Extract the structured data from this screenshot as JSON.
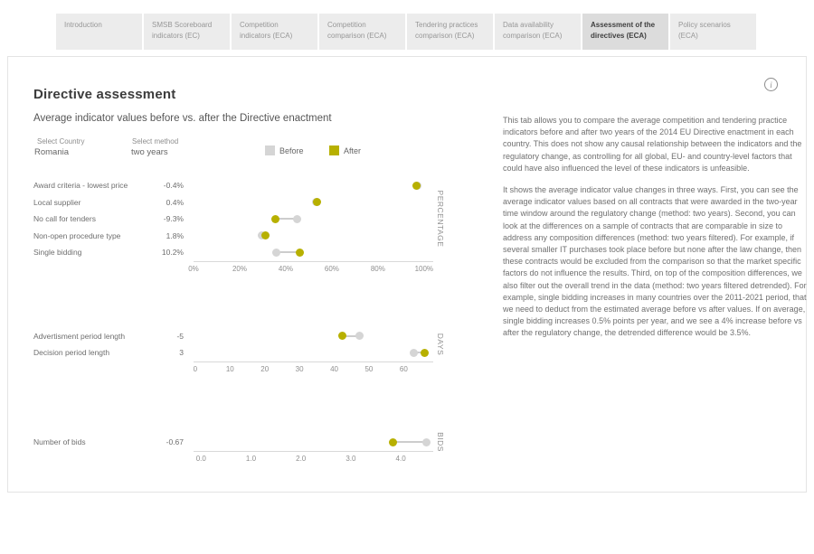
{
  "tabs": {
    "items": [
      {
        "label": "Introduction",
        "selected": false
      },
      {
        "label": "SMSB Scoreboard indicators (EC)",
        "selected": false
      },
      {
        "label": "Competition indicators (ECA)",
        "selected": false
      },
      {
        "label": "Competition comparison (ECA)",
        "selected": false
      },
      {
        "label": "Tendering practices comparison (ECA)",
        "selected": false
      },
      {
        "label": "Data availability comparison (ECA)",
        "selected": false
      },
      {
        "label": "Assessment of the directives (ECA)",
        "selected": true
      },
      {
        "label": "Policy scenarios (ECA)",
        "selected": false
      }
    ]
  },
  "header": {
    "title": "Directive assessment",
    "info_icon": "i"
  },
  "controls": {
    "country": {
      "label": "Select Country",
      "value": "Romania"
    },
    "method": {
      "label": "Select method",
      "value": "two years"
    }
  },
  "legend": {
    "items": [
      {
        "label": "Before",
        "color": "#d5d5d5"
      },
      {
        "label": "After",
        "color": "#b7b000"
      }
    ]
  },
  "colors": {
    "before": "#d5d5d5",
    "after": "#b7b000",
    "connector": "#cdcdcd",
    "axis": "#d9d9d9"
  },
  "chart_data": {
    "type": "dumbbell",
    "title": "Average indicator values before vs. after the Directive enactment",
    "legend_entries": [
      "Before",
      "After"
    ],
    "legend_position": "top",
    "grid": false,
    "groups": [
      {
        "name": "PERCENTAGE",
        "xlim": [
          0,
          104
        ],
        "ticks": [
          {
            "label": "0%",
            "value": 0
          },
          {
            "label": "20%",
            "value": 20
          },
          {
            "label": "40%",
            "value": 40
          },
          {
            "label": "60%",
            "value": 60
          },
          {
            "label": "80%",
            "value": 80
          },
          {
            "label": "100%",
            "value": 100
          }
        ],
        "rows": [
          {
            "label": "Award criteria - lowest price",
            "change": "-0.4%",
            "before": 97.3,
            "after": 96.9
          },
          {
            "label": "Local supplier",
            "change": "0.4%",
            "before": 53.1,
            "after": 53.5
          },
          {
            "label": "No call for tenders",
            "change": "-9.3%",
            "before": 45.0,
            "after": 35.7
          },
          {
            "label": "Non-open procedure type",
            "change": "1.8%",
            "before": 29.5,
            "after": 31.3
          },
          {
            "label": "Single bidding",
            "change": "10.2%",
            "before": 35.8,
            "after": 46.0
          }
        ]
      },
      {
        "name": "DAYS",
        "xlim": [
          -0.5,
          68.5
        ],
        "ticks": [
          {
            "label": "0",
            "value": 0
          },
          {
            "label": "10",
            "value": 10
          },
          {
            "label": "20",
            "value": 20
          },
          {
            "label": "30",
            "value": 30
          },
          {
            "label": "40",
            "value": 40
          },
          {
            "label": "50",
            "value": 50
          },
          {
            "label": "60",
            "value": 60
          }
        ],
        "rows": [
          {
            "label": "Advertisment period length",
            "change": "-5",
            "before": 47.3,
            "after": 42.3
          },
          {
            "label": "Decision period length",
            "change": "3",
            "before": 63.0,
            "after": 66.0
          }
        ]
      },
      {
        "name": "BIDS",
        "xlim": [
          -0.15,
          4.65
        ],
        "ticks": [
          {
            "label": "0.0",
            "value": 0
          },
          {
            "label": "1.0",
            "value": 1
          },
          {
            "label": "2.0",
            "value": 2
          },
          {
            "label": "3.0",
            "value": 3
          },
          {
            "label": "4.0",
            "value": 4
          }
        ],
        "rows": [
          {
            "label": "Number of bids",
            "change": "-0.67",
            "before": 4.52,
            "after": 3.85
          }
        ]
      }
    ]
  },
  "description": {
    "paragraphs": [
      "This tab allows you to compare the average competition and tendering practice indicators before and after two years of the 2014 EU Directive enactment in each country. This does not show any causal relationship between the indicators and the regulatory change, as controlling for all global, EU- and country-level factors that could have also influenced the level of these indicators is unfeasible.",
      "It shows the average indicator value changes in three ways. First, you can see the average indicator values based on all contracts that were awarded in the two-year time window around the regulatory change (method: two years). Second, you can look at the differences on a sample of contracts that are comparable in size to address any composition differences (method: two years filtered). For example, if several smaller IT purchases took place before but none after the law change, then these contracts would be excluded from the comparison so that the market specific factors do not influence the results. Third, on top of the composition differences, we also filter out the overall trend in the data (method: two years filtered detrended). For example, single bidding increases in many countries over the 2011-2021 period, that we need to deduct from the estimated average before vs after values. If on average, single bidding increases 0.5% points per year, and we see a 4% increase before vs after the regulatory change, the detrended difference would be 3.5%."
    ]
  }
}
